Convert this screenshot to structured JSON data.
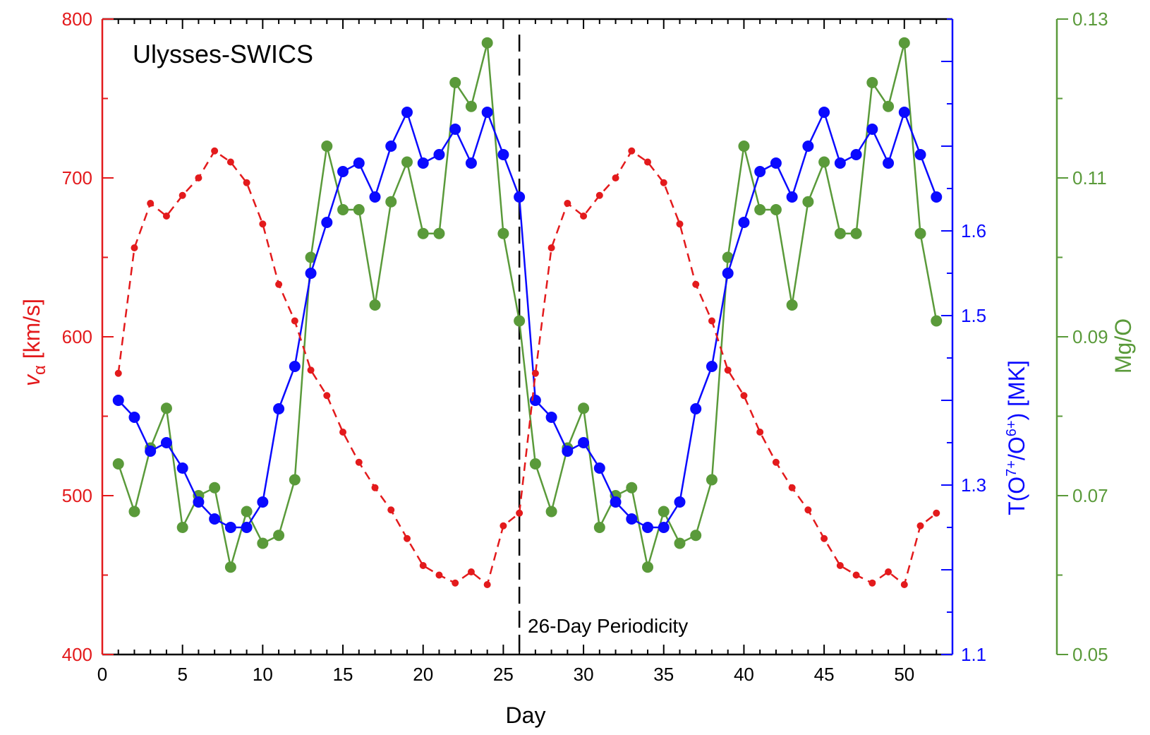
{
  "chart_data": {
    "type": "line",
    "title": "Ulysses-SWICS",
    "annotation": "26-Day Periodicity",
    "xlabel": "Day",
    "xlim": [
      0,
      53
    ],
    "xticks": [
      0,
      5,
      10,
      15,
      20,
      25,
      30,
      35,
      40,
      45,
      50
    ],
    "period_marker_x": 26,
    "axes": {
      "left": {
        "label_main": "v",
        "label_sub": "α",
        "label_unit": " [km/s]",
        "lim": [
          400,
          800
        ],
        "ticks": [
          400,
          500,
          600,
          700,
          800
        ],
        "color": "#e31a1c"
      },
      "right1": {
        "label_prefix": "T(O",
        "label_sup1": "7+",
        "label_mid": "/O",
        "label_sup2": "6+",
        "label_suffix": ") [MK]",
        "lim": [
          1.1,
          1.85
        ],
        "ticks": [
          1.1,
          1.3,
          1.5,
          1.6
        ],
        "color": "#0a0aff"
      },
      "right2": {
        "label": "Mg/O",
        "lim": [
          0.05,
          0.13
        ],
        "ticks": [
          0.05,
          0.07,
          0.09,
          0.11,
          0.13
        ],
        "color": "#5a9a3a"
      }
    },
    "series": [
      {
        "name": "v_alpha",
        "axis": "left",
        "style": "dashed-small-dots",
        "color": "#e31a1c",
        "x": [
          1,
          2,
          3,
          4,
          5,
          6,
          7,
          8,
          9,
          10,
          11,
          12,
          13,
          14,
          15,
          16,
          17,
          18,
          19,
          20,
          21,
          22,
          23,
          24,
          25,
          26,
          27,
          28,
          29,
          30,
          31,
          32,
          33,
          34,
          35,
          36,
          37,
          38,
          39,
          40,
          41,
          42,
          43,
          44,
          45,
          46,
          47,
          48,
          49,
          50,
          51,
          52
        ],
        "values": [
          577,
          656,
          684,
          676,
          689,
          700,
          717,
          710,
          697,
          671,
          633,
          610,
          579,
          563,
          540,
          521,
          505,
          491,
          473,
          456,
          450,
          445,
          452,
          444,
          481,
          489,
          577,
          656,
          684,
          676,
          689,
          700,
          717,
          710,
          697,
          671,
          633,
          610,
          579,
          563,
          540,
          521,
          505,
          491,
          473,
          456,
          450,
          445,
          452,
          444,
          481,
          489
        ]
      },
      {
        "name": "T(O7+/O6+)",
        "axis": "right1",
        "style": "solid-large-dots",
        "color": "#0a0aff",
        "x": [
          1,
          2,
          3,
          4,
          5,
          6,
          7,
          8,
          9,
          10,
          11,
          12,
          13,
          14,
          15,
          16,
          17,
          18,
          19,
          20,
          21,
          22,
          23,
          24,
          25,
          26,
          27,
          28,
          29,
          30,
          31,
          32,
          33,
          34,
          35,
          36,
          37,
          38,
          39,
          40,
          41,
          42,
          43,
          44,
          45,
          46,
          47,
          48,
          49,
          50,
          51,
          52
        ],
        "values": [
          1.4,
          1.38,
          1.34,
          1.35,
          1.32,
          1.28,
          1.26,
          1.25,
          1.25,
          1.28,
          1.39,
          1.44,
          1.55,
          1.61,
          1.67,
          1.68,
          1.64,
          1.7,
          1.74,
          1.68,
          1.69,
          1.72,
          1.68,
          1.74,
          1.69,
          1.64,
          1.4,
          1.38,
          1.34,
          1.35,
          1.32,
          1.28,
          1.26,
          1.25,
          1.25,
          1.28,
          1.39,
          1.44,
          1.55,
          1.61,
          1.67,
          1.68,
          1.64,
          1.7,
          1.74,
          1.68,
          1.69,
          1.72,
          1.68,
          1.74,
          1.69,
          1.64
        ]
      },
      {
        "name": "Mg/O",
        "axis": "right2",
        "style": "solid-large-dots",
        "color": "#5a9a3a",
        "x": [
          1,
          2,
          3,
          4,
          5,
          6,
          7,
          8,
          9,
          10,
          11,
          12,
          13,
          14,
          15,
          16,
          17,
          18,
          19,
          20,
          21,
          22,
          23,
          24,
          25,
          26,
          27,
          28,
          29,
          30,
          31,
          32,
          33,
          34,
          35,
          36,
          37,
          38,
          39,
          40,
          41,
          42,
          43,
          44,
          45,
          46,
          47,
          48,
          49,
          50,
          51,
          52
        ],
        "values": [
          0.074,
          0.068,
          0.076,
          0.081,
          0.066,
          0.07,
          0.071,
          0.061,
          0.068,
          0.064,
          0.065,
          0.072,
          0.1,
          0.114,
          0.106,
          0.106,
          0.094,
          0.107,
          0.112,
          0.103,
          0.103,
          0.122,
          0.119,
          0.127,
          0.103,
          0.092,
          0.074,
          0.068,
          0.076,
          0.081,
          0.066,
          0.07,
          0.071,
          0.061,
          0.068,
          0.064,
          0.065,
          0.072,
          0.1,
          0.114,
          0.106,
          0.106,
          0.094,
          0.107,
          0.112,
          0.103,
          0.103,
          0.122,
          0.119,
          0.127,
          0.103,
          0.092
        ]
      }
    ]
  }
}
